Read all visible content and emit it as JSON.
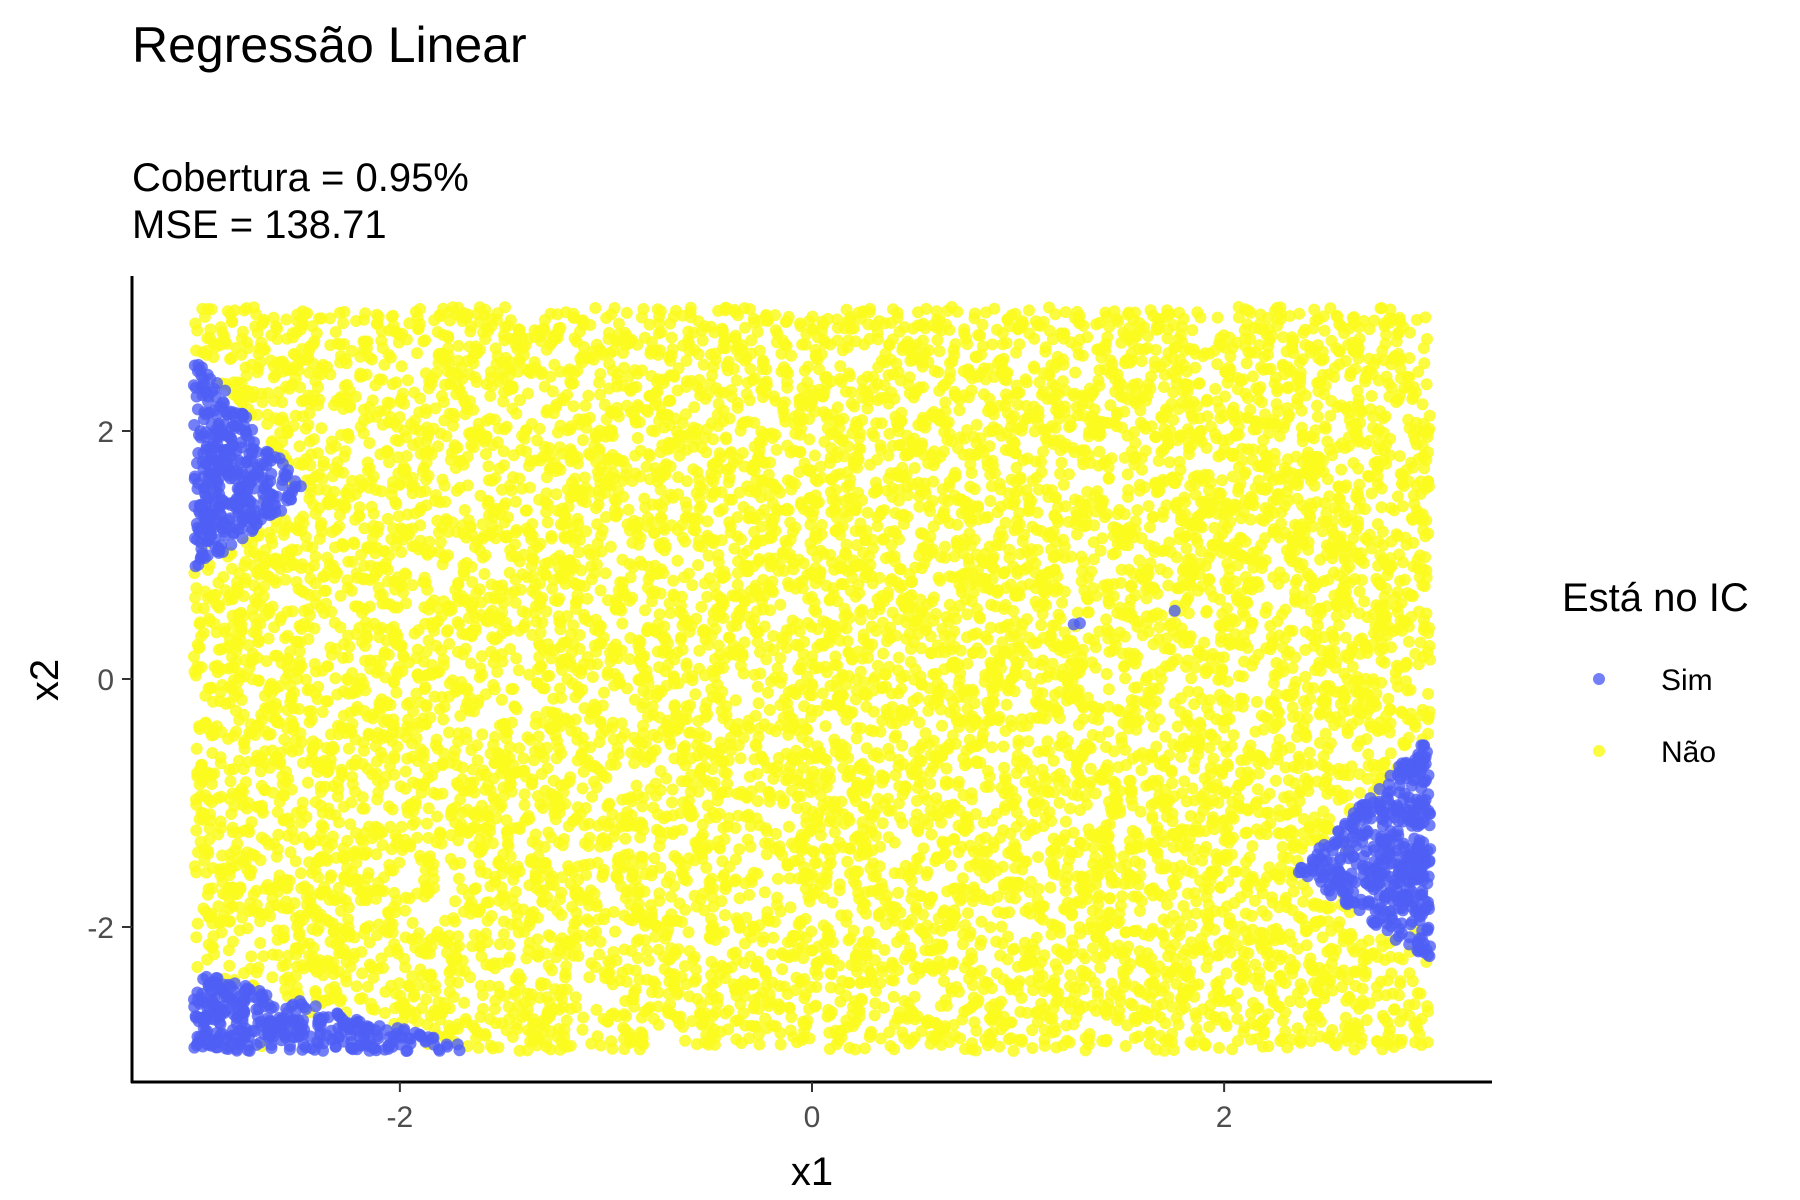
{
  "chart_data": {
    "type": "scatter",
    "title": "Regressão Linear",
    "subtitle_lines": [
      "Cobertura = 0.95%",
      "MSE = 138.71"
    ],
    "xlabel": "x1",
    "ylabel": "x2",
    "xlim": [
      -3.3,
      3.3
    ],
    "ylim": [
      -3.25,
      3.25
    ],
    "x_ticks": [
      -2,
      0,
      2
    ],
    "x_tick_labels": [
      "-2",
      "0",
      "2"
    ],
    "y_ticks": [
      -2,
      0,
      2
    ],
    "y_tick_labels": [
      "-2",
      "0",
      "2"
    ],
    "grid": false,
    "legend": {
      "title": "Está no IC",
      "position": "right",
      "entries": [
        {
          "label": "Sim",
          "color": "#4f5ff5"
        },
        {
          "label": "Não",
          "color": "#fafa1e"
        }
      ]
    },
    "series": [
      {
        "name": "Não",
        "color": "#fafa1e",
        "opacity": 0.85,
        "distribution": "uniform",
        "x_range": [
          -3,
          3
        ],
        "y_range": [
          -3,
          3
        ],
        "approx_count": 10000
      },
      {
        "name": "Sim",
        "color": "#4f5ff5",
        "opacity": 0.8,
        "clusters": [
          {
            "polygon": [
              [
                -3,
                2.65
              ],
              [
                -3,
                0.85
              ],
              [
                -2.45,
                1.5
              ]
            ]
          },
          {
            "polygon": [
              [
                -3,
                -2.35
              ],
              [
                -3,
                -3
              ],
              [
                -1.6,
                -3
              ]
            ]
          },
          {
            "polygon": [
              [
                3,
                -0.45
              ],
              [
                3,
                -2.3
              ],
              [
                2.35,
                -1.55
              ]
            ]
          }
        ],
        "points": [
          [
            1.27,
            0.44
          ],
          [
            1.76,
            0.55
          ],
          [
            1.3,
            0.45
          ]
        ]
      }
    ]
  }
}
